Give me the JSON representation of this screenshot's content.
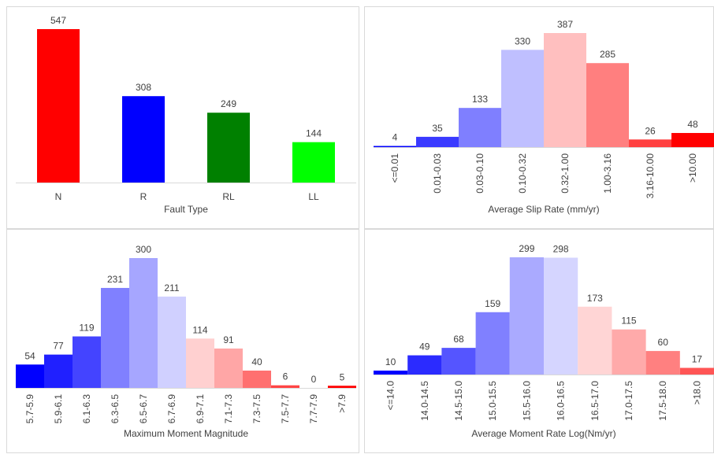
{
  "chart_data": [
    {
      "type": "bar",
      "x_label": "Fault Type",
      "categories": [
        "N",
        "R",
        "RL",
        "LL"
      ],
      "values": [
        547,
        308,
        249,
        144
      ],
      "colors": [
        "#ff0000",
        "#0000ff",
        "#008000",
        "#00ff00"
      ]
    },
    {
      "type": "bar",
      "x_label": "Average Slip Rate (mm/yr)",
      "categories": [
        "<=0.01",
        "0.01-0.03",
        "0.03-0.10",
        "0.10-0.32",
        "0.32-1.00",
        "1.00-3.16",
        "3.16-10.00",
        ">10.00"
      ],
      "values": [
        4,
        35,
        133,
        330,
        387,
        285,
        26,
        48
      ],
      "colors": [
        "#0000ff",
        "#3a3aff",
        "#7f7fff",
        "#bfbfff",
        "#ffbfbf",
        "#ff7f7f",
        "#ff4040",
        "#ff0000"
      ]
    },
    {
      "type": "bar",
      "x_label": "Maximum Moment Magnitude",
      "categories": [
        "5.7-5.9",
        "5.9-6.1",
        "6.1-6.3",
        "6.3-6.5",
        "6.5-6.7",
        "6.7-6.9",
        "6.9-7.1",
        "7.1-7.3",
        "7.3-7.5",
        "7.5-7.7",
        "7.7-7.9",
        ">7.9"
      ],
      "values": [
        54,
        77,
        119,
        231,
        300,
        211,
        114,
        91,
        40,
        6,
        0,
        5
      ],
      "colors": [
        "#0000ff",
        "#2020ff",
        "#4444ff",
        "#8080ff",
        "#a6a6ff",
        "#d0d0ff",
        "#ffd0d0",
        "#ffa6a6",
        "#ff7070",
        "#ff4444",
        "#ff2a2a",
        "#ff0000"
      ]
    },
    {
      "type": "bar",
      "x_label": "Average Moment Rate Log(Nm/yr)",
      "categories": [
        "<=14.0",
        "14.0-14.5",
        "14.5-15.0",
        "15.0-15.5",
        "15.5-16.0",
        "16.0-16.5",
        "16.5-17.0",
        "17.0-17.5",
        "17.5-18.0",
        ">18.0"
      ],
      "values": [
        10,
        49,
        68,
        159,
        299,
        298,
        173,
        115,
        60,
        17
      ],
      "colors": [
        "#0000ff",
        "#2b2bff",
        "#5555ff",
        "#8080ff",
        "#aaaaff",
        "#d5d5ff",
        "#ffd5d5",
        "#ffaaaa",
        "#ff8080",
        "#ff5555"
      ]
    }
  ]
}
